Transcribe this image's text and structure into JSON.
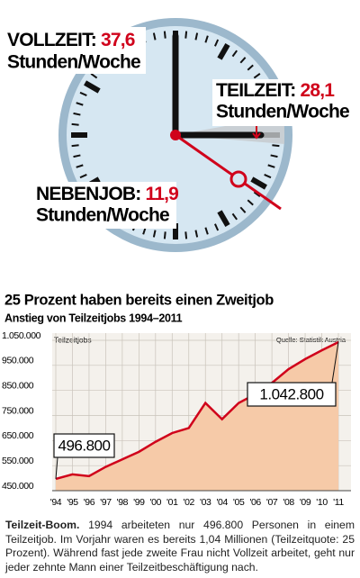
{
  "clock": {
    "labels": [
      {
        "name": "VOLLZEIT:",
        "value": "37,6",
        "unit": "Stunden/Woche"
      },
      {
        "name": "TEILZEIT:",
        "value": "28,1",
        "unit": "Stunden/Woche"
      },
      {
        "name": "NEBENJOB:",
        "value": "11,9",
        "unit": "Stunden/Woche"
      }
    ]
  },
  "chart_data": {
    "type": "line",
    "title": "25 Prozent haben bereits einen Zweitjob",
    "subtitle": "Anstieg von Teilzeitjobs 1994–2011",
    "y_label": "Teilzeitjobs",
    "source": "Quelle: Statistik Austria",
    "categories": [
      "'94",
      "'95",
      "'96",
      "'97",
      "'98",
      "'99",
      "'00",
      "'01",
      "'02",
      "'03",
      "'04",
      "'05",
      "'06",
      "'07",
      "'08",
      "'09",
      "'10",
      "'11"
    ],
    "values": [
      496800,
      515000,
      508000,
      545000,
      575000,
      605000,
      645000,
      680000,
      700000,
      800000,
      735000,
      800000,
      835000,
      880000,
      935000,
      975000,
      1010000,
      1042800
    ],
    "value_labels": [
      "496.800",
      null,
      null,
      null,
      null,
      null,
      null,
      null,
      null,
      null,
      null,
      null,
      null,
      null,
      null,
      null,
      null,
      "1.042.800"
    ],
    "color": "#d0021b",
    "area_color": "#f6caa8",
    "ylim": [
      450000,
      1050000
    ],
    "yticks": [
      {
        "value": 450000,
        "label": "450.000"
      },
      {
        "value": 550000,
        "label": "550.000"
      },
      {
        "value": 650000,
        "label": "650.000"
      },
      {
        "value": 750000,
        "label": "750.000"
      },
      {
        "value": 850000,
        "label": "850.000"
      },
      {
        "value": 950000,
        "label": "950.000"
      },
      {
        "value": 1050000,
        "label": "1.050.000"
      }
    ],
    "grid": true
  },
  "caption": {
    "lead": "Teilzeit-Boom.",
    "text": "1994 arbeiteten nur 496.800 Personen in einem Teilzeitjob. Im Vorjahr waren es bereits 1,04 Millionen (Teilzeitquote: 25 Prozent). Während fast jede zweite Frau nicht Vollzeit arbeitet, geht nur jeder zehnte Mann einer Teilzeitbeschäftigung nach."
  }
}
